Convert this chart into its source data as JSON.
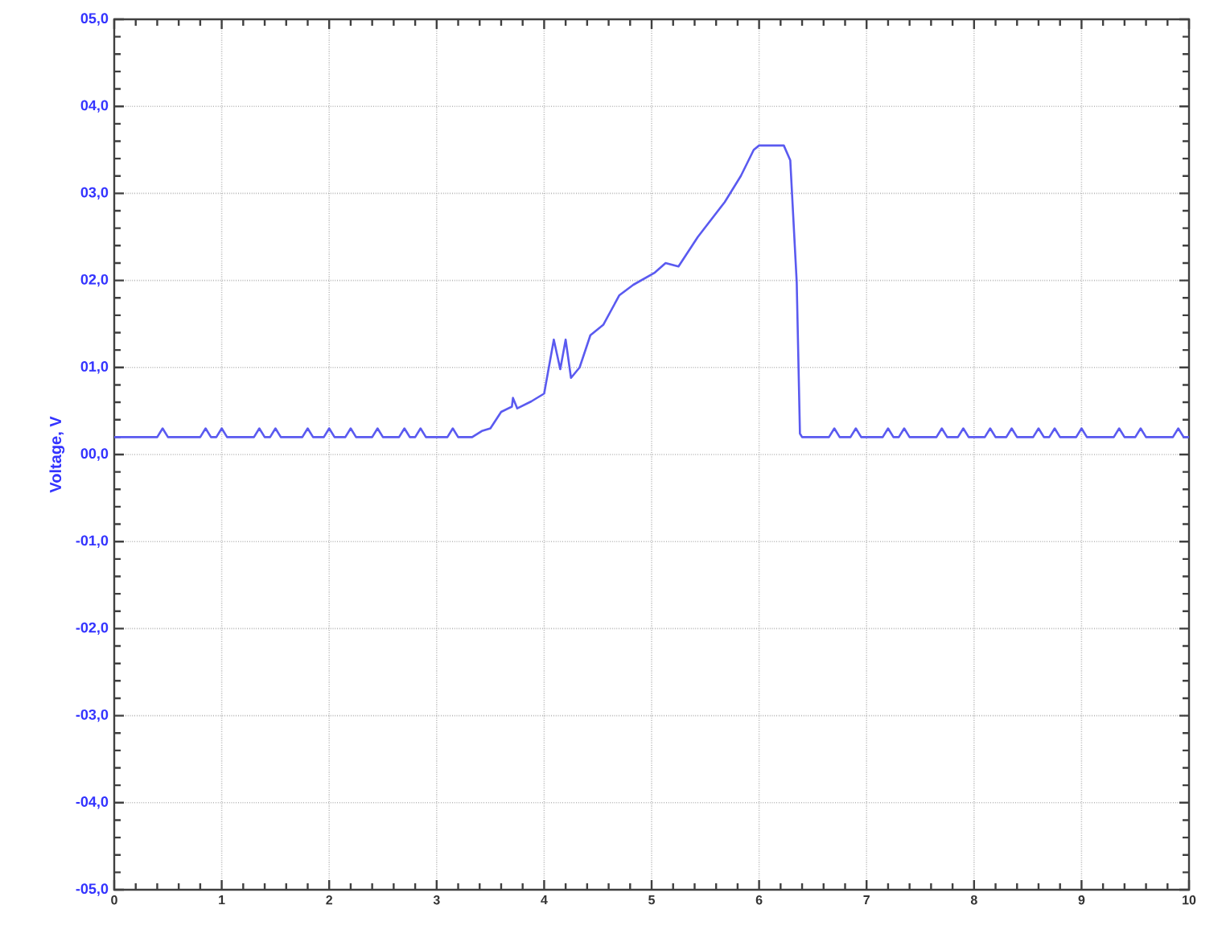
{
  "chart_data": {
    "type": "line",
    "ylabel": "Voltage, V",
    "x": [
      0,
      0.4,
      0.45,
      0.5,
      0.8,
      0.85,
      0.9,
      0.95,
      1.0,
      1.05,
      1.3,
      1.35,
      1.4,
      1.45,
      1.5,
      1.55,
      1.75,
      1.8,
      1.85,
      1.95,
      2.0,
      2.05,
      2.15,
      2.2,
      2.25,
      2.4,
      2.45,
      2.5,
      2.65,
      2.7,
      2.75,
      2.8,
      2.85,
      2.9,
      3.1,
      3.15,
      3.2,
      3.33,
      3.42,
      3.5,
      3.6,
      3.7,
      3.71,
      3.75,
      3.88,
      4.0,
      4.09,
      4.15,
      4.2,
      4.25,
      4.33,
      4.43,
      4.55,
      4.7,
      4.83,
      5.03,
      5.13,
      5.25,
      5.43,
      5.68,
      5.83,
      5.95,
      6.0,
      6.23,
      6.29,
      6.35,
      6.38,
      6.4,
      6.65,
      6.7,
      6.75,
      6.85,
      6.9,
      6.95,
      7.15,
      7.2,
      7.25,
      7.3,
      7.35,
      7.4,
      7.65,
      7.7,
      7.75,
      7.85,
      7.9,
      7.95,
      8.1,
      8.15,
      8.2,
      8.3,
      8.35,
      8.4,
      8.55,
      8.6,
      8.65,
      8.7,
      8.75,
      8.8,
      8.95,
      9.0,
      9.05,
      9.3,
      9.35,
      9.4,
      9.5,
      9.55,
      9.6,
      9.85,
      9.9,
      9.95,
      10
    ],
    "values": [
      0.2,
      0.2,
      0.3,
      0.2,
      0.2,
      0.3,
      0.2,
      0.2,
      0.3,
      0.2,
      0.2,
      0.3,
      0.2,
      0.2,
      0.3,
      0.2,
      0.2,
      0.3,
      0.2,
      0.2,
      0.3,
      0.2,
      0.2,
      0.3,
      0.2,
      0.2,
      0.3,
      0.2,
      0.2,
      0.3,
      0.2,
      0.2,
      0.3,
      0.2,
      0.2,
      0.3,
      0.2,
      0.2,
      0.27,
      0.3,
      0.49,
      0.55,
      0.65,
      0.53,
      0.61,
      0.7,
      1.32,
      0.98,
      1.32,
      0.88,
      1.0,
      1.37,
      1.49,
      1.83,
      1.95,
      2.09,
      2.2,
      2.16,
      2.5,
      2.9,
      3.2,
      3.5,
      3.55,
      3.55,
      3.38,
      1.98,
      0.24,
      0.2,
      0.2,
      0.3,
      0.2,
      0.2,
      0.3,
      0.2,
      0.2,
      0.3,
      0.2,
      0.2,
      0.3,
      0.2,
      0.2,
      0.3,
      0.2,
      0.2,
      0.3,
      0.2,
      0.2,
      0.3,
      0.2,
      0.2,
      0.3,
      0.2,
      0.2,
      0.3,
      0.2,
      0.2,
      0.3,
      0.2,
      0.2,
      0.3,
      0.2,
      0.2,
      0.3,
      0.2,
      0.2,
      0.3,
      0.2,
      0.2,
      0.3,
      0.2,
      0.2
    ],
    "color": "#5a5af0",
    "xlim": [
      0,
      10
    ],
    "ylim": [
      -5,
      5
    ],
    "xticks": [
      0,
      1,
      2,
      3,
      4,
      5,
      6,
      7,
      8,
      9,
      10
    ],
    "yticks": [
      {
        "value": -5,
        "label": "-05,0"
      },
      {
        "value": -4,
        "label": "-04,0"
      },
      {
        "value": -3,
        "label": "-03,0"
      },
      {
        "value": -2,
        "label": "-02,0"
      },
      {
        "value": -1,
        "label": "-01,0"
      },
      {
        "value": 0,
        "label": "00,0"
      },
      {
        "value": 1,
        "label": "01,0"
      },
      {
        "value": 2,
        "label": "02,0"
      },
      {
        "value": 3,
        "label": "03,0"
      },
      {
        "value": 4,
        "label": "04,0"
      },
      {
        "value": 5,
        "label": "05,0"
      }
    ],
    "grid": true
  }
}
